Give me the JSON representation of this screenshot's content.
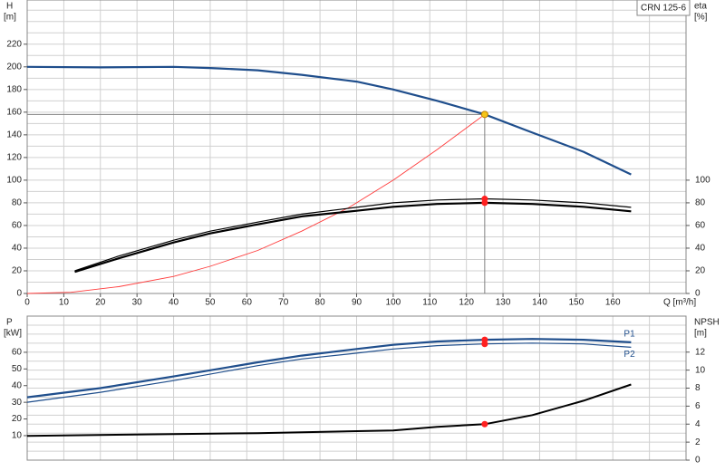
{
  "chart_data": [
    {
      "type": "line",
      "title": "CRN 125-6",
      "ylabel": "H",
      "yunit": "[m]",
      "y2label": "eta",
      "y2unit": "[%]",
      "xlabel": "Q [m³/h]",
      "xlim": [
        0,
        180
      ],
      "xticks": [
        0,
        10,
        20,
        30,
        40,
        50,
        60,
        70,
        80,
        90,
        100,
        110,
        120,
        130,
        140,
        150,
        160
      ],
      "xgrid": [
        0,
        10,
        20,
        30,
        40,
        50,
        60,
        70,
        80,
        90,
        100,
        110,
        120,
        130,
        140,
        150,
        160,
        170
      ],
      "ylim": [
        0,
        259
      ],
      "yticks": [
        0,
        20,
        40,
        60,
        80,
        100,
        120,
        140,
        160,
        180,
        200,
        220
      ],
      "ygrid": [
        0,
        10,
        20,
        30,
        40,
        50,
        60,
        70,
        80,
        90,
        100,
        110,
        120,
        130,
        140,
        150,
        160,
        170,
        180,
        190,
        200,
        210,
        220,
        230,
        240,
        250
      ],
      "y2lim": [
        0,
        259
      ],
      "y2ticks": [
        0,
        20,
        40,
        60,
        80,
        100
      ],
      "grid": true,
      "guide": {
        "x": 125,
        "y": 158,
        "color": "#808080"
      },
      "series": [
        {
          "color": "#1f4e8c",
          "width": 2.2,
          "x": [
            0,
            20,
            40,
            50,
            63,
            75,
            90,
            100,
            112,
            125,
            138,
            152,
            165
          ],
          "values": [
            200,
            199.5,
            200,
            199,
            197,
            193,
            187,
            180,
            170,
            158,
            142,
            125,
            105
          ]
        },
        {
          "color": "#ff3b3b",
          "width": 0.9,
          "x": [
            0,
            12,
            25,
            40,
            50,
            63,
            75,
            88,
            100,
            112,
            125
          ],
          "values": [
            0,
            1,
            6,
            15,
            24,
            38,
            55,
            76,
            100,
            127,
            158
          ]
        },
        {
          "color": "#000000",
          "width": 1.2,
          "axis": "y2",
          "x": [
            13,
            25,
            40,
            50,
            63,
            75,
            90,
            100,
            112,
            125,
            138,
            152,
            165
          ],
          "values": [
            20,
            33,
            47,
            55,
            63,
            70,
            76,
            80,
            82.5,
            83.5,
            82.5,
            80,
            76
          ]
        },
        {
          "color": "#000000",
          "width": 2.2,
          "axis": "y2",
          "x": [
            13,
            25,
            40,
            50,
            63,
            75,
            90,
            100,
            112,
            125,
            138,
            152,
            165
          ],
          "values": [
            19,
            31,
            45,
            53,
            61,
            68,
            73,
            76.5,
            79,
            80,
            79,
            76.5,
            72.5
          ]
        }
      ],
      "points": [
        {
          "x": 125,
          "value": 158,
          "color": "#f5c518"
        },
        {
          "x": 125,
          "value": 83.5,
          "axis": "y2",
          "color": "#ff2020"
        },
        {
          "x": 125,
          "value": 80,
          "axis": "y2",
          "color": "#ff2020"
        }
      ]
    },
    {
      "type": "line",
      "ylabel": "P",
      "yunit": "[kW]",
      "y2label": "NPSH",
      "y2unit": "[m]",
      "xlim": [
        0,
        180
      ],
      "xgrid": [
        0,
        10,
        20,
        30,
        40,
        50,
        60,
        70,
        80,
        90,
        100,
        110,
        120,
        130,
        140,
        150,
        160,
        170
      ],
      "ylim": [
        -4.7,
        81.7
      ],
      "yticks": [
        10,
        20,
        30,
        40,
        50,
        60
      ],
      "y2lim": [
        0,
        16
      ],
      "y2ticks": [
        0,
        2,
        4,
        6,
        8,
        10,
        12
      ],
      "y2grid": [
        0,
        1,
        2,
        3,
        4,
        5,
        6,
        7,
        8,
        9,
        10,
        11,
        12,
        13,
        14,
        15
      ],
      "grid": true,
      "series": [
        {
          "name": "P1",
          "color": "#1f4e8c",
          "width": 2.2,
          "x": [
            0,
            20,
            40,
            63,
            75,
            90,
            100,
            112,
            125,
            138,
            152,
            165
          ],
          "values": [
            33,
            38.5,
            45.5,
            54,
            58,
            62,
            64.5,
            66.5,
            67.5,
            68,
            67.5,
            66
          ]
        },
        {
          "name": "P2",
          "color": "#1f4e8c",
          "width": 1.2,
          "x": [
            0,
            20,
            40,
            63,
            75,
            90,
            100,
            112,
            125,
            138,
            152,
            165
          ],
          "values": [
            30,
            36,
            43,
            52,
            56,
            59.5,
            62,
            64,
            65,
            65.5,
            65,
            63
          ]
        },
        {
          "color": "#000000",
          "width": 2,
          "axis": "y2",
          "x": [
            0,
            63,
            100,
            112,
            125,
            138,
            152,
            165
          ],
          "values": [
            2.7,
            3.0,
            3.3,
            3.7,
            4.0,
            5.0,
            6.6,
            8.4
          ]
        }
      ],
      "points": [
        {
          "x": 125,
          "value": 67.5,
          "color": "#ff2020"
        },
        {
          "x": 125,
          "value": 65,
          "color": "#ff2020"
        },
        {
          "x": 125,
          "value": 4.0,
          "axis": "y2",
          "color": "#ff2020"
        }
      ]
    }
  ]
}
